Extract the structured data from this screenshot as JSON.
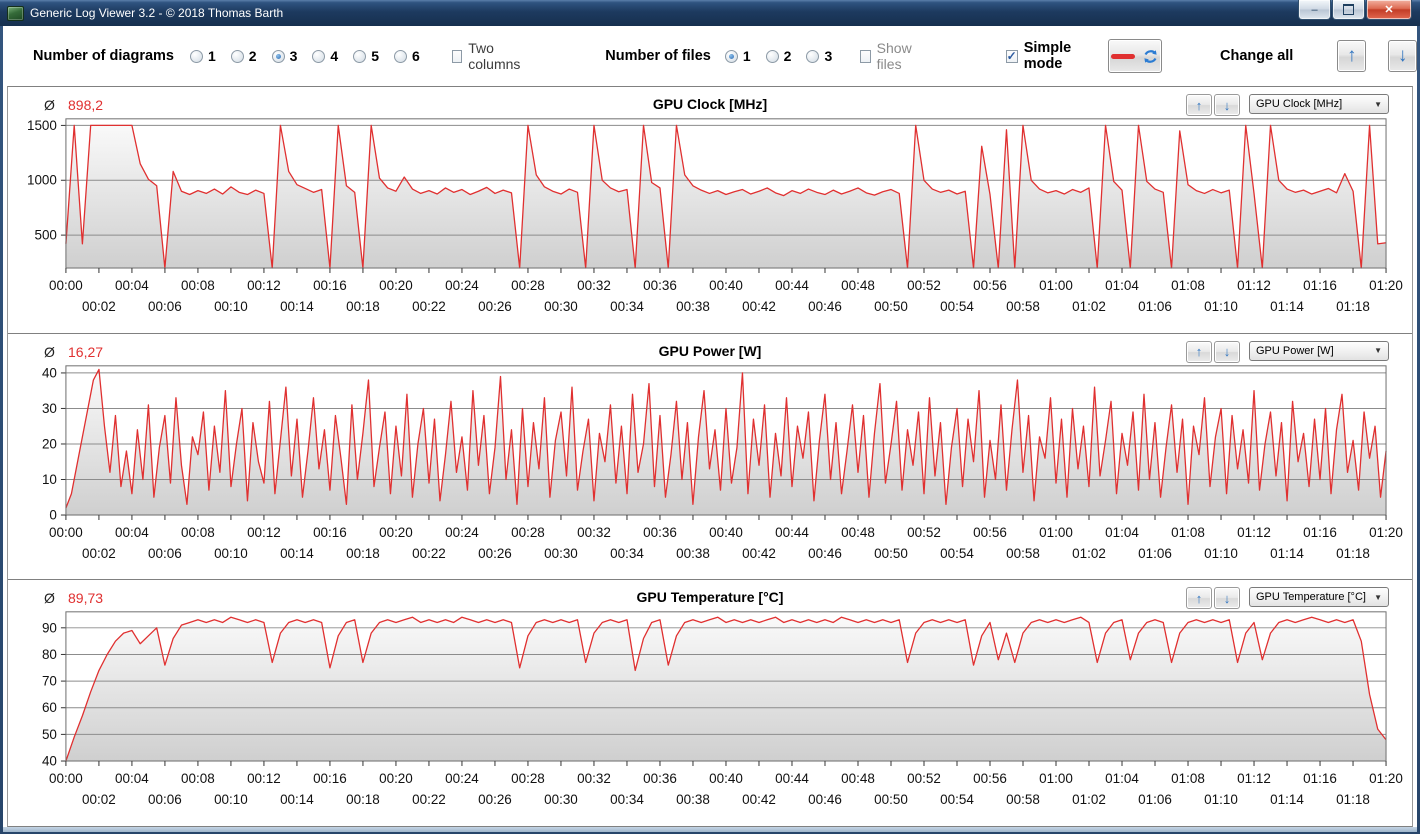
{
  "window": {
    "title": "Generic Log Viewer 3.2 - © 2018 Thomas Barth",
    "controls": {
      "minimize": "–",
      "maximize": "",
      "close": "✕"
    }
  },
  "toolbar": {
    "diagrams_label": "Number of diagrams",
    "diagram_options": [
      "1",
      "2",
      "3",
      "4",
      "5",
      "6"
    ],
    "diagrams_selected": "3",
    "two_columns_label": "Two columns",
    "two_columns_checked": false,
    "files_label": "Number of files",
    "file_options": [
      "1",
      "2",
      "3"
    ],
    "files_selected": "1",
    "show_files_label": "Show files",
    "show_files_checked": false,
    "simple_mode_label": "Simple mode",
    "simple_mode_checked": true,
    "change_all_label": "Change all"
  },
  "x_axis": {
    "tick_step_min": 2,
    "row1": [
      "00:00",
      "00:04",
      "00:08",
      "00:12",
      "00:16",
      "00:20",
      "00:24",
      "00:28",
      "00:32",
      "00:36",
      "00:40",
      "00:44",
      "00:48",
      "00:52",
      "00:56",
      "01:00",
      "01:04",
      "01:08",
      "01:12",
      "01:16",
      "01:20"
    ],
    "row2": [
      "00:02",
      "00:06",
      "00:10",
      "00:14",
      "00:18",
      "00:22",
      "00:26",
      "00:30",
      "00:34",
      "00:38",
      "00:42",
      "00:46",
      "00:50",
      "00:54",
      "00:58",
      "01:02",
      "01:06",
      "01:10",
      "01:14",
      "01:18"
    ]
  },
  "chart_data": [
    {
      "type": "line",
      "title": "GPU Clock [MHz]",
      "average_label": "Ø",
      "average": "898,2",
      "dropdown_value": "GPU Clock [MHz]",
      "line_color": "#e03030",
      "x_start_min": 0,
      "x_end_min": 80,
      "sample_step_s": 30,
      "ylim": [
        200,
        1560
      ],
      "yticks": [
        500,
        1000,
        1500
      ],
      "grid": true,
      "values": [
        420,
        1500,
        420,
        1500,
        1500,
        1500,
        1500,
        1500,
        1500,
        1150,
        1010,
        950,
        200,
        1080,
        900,
        870,
        905,
        880,
        920,
        875,
        940,
        890,
        870,
        910,
        880,
        200,
        1500,
        1080,
        960,
        925,
        890,
        915,
        200,
        1500,
        950,
        890,
        200,
        1500,
        1020,
        930,
        900,
        1030,
        920,
        880,
        905,
        875,
        930,
        890,
        915,
        870,
        900,
        935,
        880,
        910,
        885,
        200,
        1500,
        1050,
        940,
        900,
        875,
        920,
        890,
        200,
        1500,
        1000,
        930,
        895,
        915,
        200,
        1500,
        980,
        930,
        200,
        1500,
        1050,
        950,
        910,
        880,
        905,
        870,
        895,
        915,
        875,
        900,
        930,
        885,
        860,
        905,
        880,
        920,
        890,
        870,
        910,
        875,
        900,
        930,
        885,
        865,
        895,
        915,
        880,
        200,
        1500,
        1000,
        920,
        890,
        910,
        875,
        900,
        200,
        1310,
        870,
        200,
        1460,
        200,
        1500,
        1000,
        920,
        885,
        905,
        875,
        915,
        890,
        930,
        200,
        1500,
        990,
        910,
        200,
        1500,
        990,
        920,
        890,
        200,
        1450,
        960,
        905,
        880,
        915,
        885,
        910,
        200,
        1500,
        880,
        200,
        1500,
        1000,
        920,
        890,
        910,
        875,
        900,
        925,
        885,
        1060,
        900,
        200,
        1500,
        420,
        430
      ]
    },
    {
      "type": "line",
      "title": "GPU Power [W]",
      "average_label": "Ø",
      "average": "16,27",
      "dropdown_value": "GPU Power [W]",
      "line_color": "#e03030",
      "x_start_min": 0,
      "x_end_min": 80,
      "sample_step_s": 20,
      "ylim": [
        0,
        42
      ],
      "yticks": [
        0,
        10,
        20,
        30,
        40
      ],
      "grid": true,
      "values": [
        2,
        6,
        14,
        22,
        30,
        38,
        41,
        25,
        12,
        28,
        8,
        18,
        6,
        24,
        10,
        31,
        5,
        19,
        28,
        9,
        33,
        14,
        3,
        22,
        17,
        29,
        7,
        25,
        12,
        35,
        8,
        20,
        30,
        4,
        26,
        15,
        9,
        32,
        6,
        21,
        36,
        11,
        27,
        5,
        18,
        33,
        13,
        24,
        7,
        28,
        16,
        3,
        31,
        10,
        23,
        38,
        8,
        19,
        29,
        6,
        25,
        11,
        34,
        5,
        20,
        30,
        9,
        27,
        4,
        17,
        32,
        12,
        22,
        7,
        35,
        14,
        28,
        6,
        19,
        39,
        10,
        24,
        3,
        30,
        8,
        26,
        13,
        33,
        5,
        21,
        29,
        11,
        36,
        7,
        18,
        27,
        4,
        23,
        15,
        31,
        9,
        25,
        6,
        34,
        12,
        20,
        37,
        8,
        28,
        5,
        17,
        32,
        10,
        26,
        3,
        22,
        35,
        13,
        24,
        7,
        30,
        9,
        19,
        40,
        6,
        27,
        14,
        31,
        5,
        23,
        11,
        33,
        8,
        25,
        16,
        29,
        4,
        21,
        34,
        10,
        26,
        6,
        18,
        31,
        12,
        28,
        5,
        23,
        37,
        9,
        20,
        32,
        7,
        24,
        14,
        29,
        6,
        33,
        11,
        26,
        3,
        19,
        30,
        8,
        27,
        15,
        35,
        5,
        21,
        10,
        31,
        7,
        24,
        38,
        12,
        28,
        4,
        22,
        16,
        33,
        9,
        27,
        5,
        30,
        13,
        25,
        8,
        36,
        11,
        21,
        32,
        6,
        23,
        14,
        29,
        7,
        34,
        10,
        26,
        5,
        19,
        31,
        12,
        27,
        3,
        25,
        17,
        33,
        8,
        22,
        30,
        6,
        28,
        13,
        24,
        9,
        35,
        7,
        20,
        29,
        11,
        26,
        4,
        32,
        15,
        23,
        8,
        27,
        10,
        30,
        6,
        24,
        34,
        12,
        21,
        7,
        29,
        16,
        25,
        5,
        18
      ]
    },
    {
      "type": "line",
      "title": "GPU Temperature [°C]",
      "average_label": "Ø",
      "average": "89,73",
      "dropdown_value": "GPU Temperature [°C]",
      "line_color": "#e03030",
      "x_start_min": 0,
      "x_end_min": 80,
      "sample_step_s": 30,
      "ylim": [
        40,
        96
      ],
      "yticks": [
        40,
        50,
        60,
        70,
        80,
        90
      ],
      "grid": true,
      "values": [
        40,
        49,
        57,
        66,
        74,
        80,
        85,
        88,
        89,
        84,
        87,
        90,
        76,
        86,
        91,
        92,
        93,
        92,
        93,
        92,
        94,
        93,
        92,
        93,
        92,
        77,
        88,
        92,
        93,
        92,
        93,
        92,
        75,
        87,
        92,
        93,
        77,
        88,
        92,
        93,
        92,
        93,
        94,
        92,
        93,
        92,
        93,
        92,
        94,
        93,
        92,
        93,
        92,
        93,
        92,
        75,
        87,
        92,
        93,
        92,
        93,
        92,
        93,
        77,
        88,
        92,
        93,
        92,
        93,
        74,
        86,
        92,
        93,
        76,
        87,
        92,
        93,
        92,
        93,
        94,
        92,
        93,
        92,
        93,
        92,
        93,
        94,
        92,
        93,
        92,
        93,
        92,
        93,
        92,
        94,
        93,
        92,
        93,
        92,
        93,
        92,
        93,
        77,
        88,
        92,
        93,
        92,
        93,
        92,
        93,
        76,
        87,
        92,
        78,
        88,
        77,
        88,
        92,
        93,
        92,
        93,
        92,
        93,
        94,
        92,
        77,
        88,
        92,
        93,
        78,
        88,
        92,
        93,
        92,
        77,
        88,
        92,
        93,
        92,
        93,
        92,
        93,
        77,
        88,
        92,
        78,
        88,
        92,
        93,
        92,
        93,
        94,
        93,
        92,
        93,
        92,
        93,
        85,
        65,
        52,
        48
      ]
    }
  ]
}
